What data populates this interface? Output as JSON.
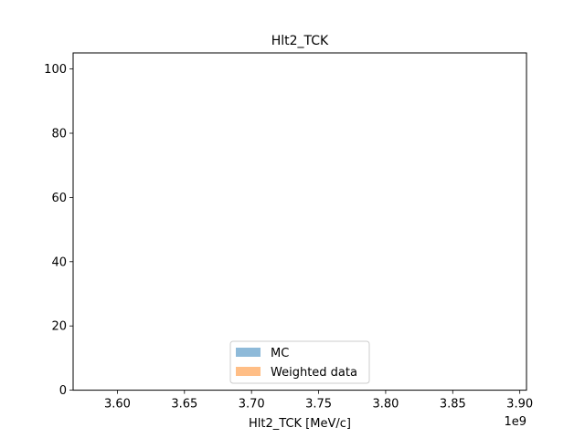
{
  "chart_data": {
    "type": "bar",
    "title": "Hlt2_TCK",
    "xlabel": "Hlt2_TCK [MeV/c]",
    "ylabel": "",
    "x_scale_label": "1e9",
    "xlim": [
      3.567,
      3.905
    ],
    "ylim": [
      0,
      105
    ],
    "xticks": [
      3.6,
      3.65,
      3.7,
      3.75,
      3.8,
      3.85,
      3.9
    ],
    "xtick_labels": [
      "3.60",
      "3.65",
      "3.70",
      "3.75",
      "3.80",
      "3.85",
      "3.90"
    ],
    "yticks": [
      0,
      20,
      40,
      60,
      80,
      100
    ],
    "ytick_labels": [
      "0",
      "20",
      "40",
      "60",
      "80",
      "100"
    ],
    "grid": false,
    "legend_position": "lower center",
    "series": [
      {
        "name": "MC",
        "color": "#8ebad9",
        "values": []
      },
      {
        "name": "Weighted data",
        "color": "#ffbe86",
        "values": []
      }
    ]
  }
}
